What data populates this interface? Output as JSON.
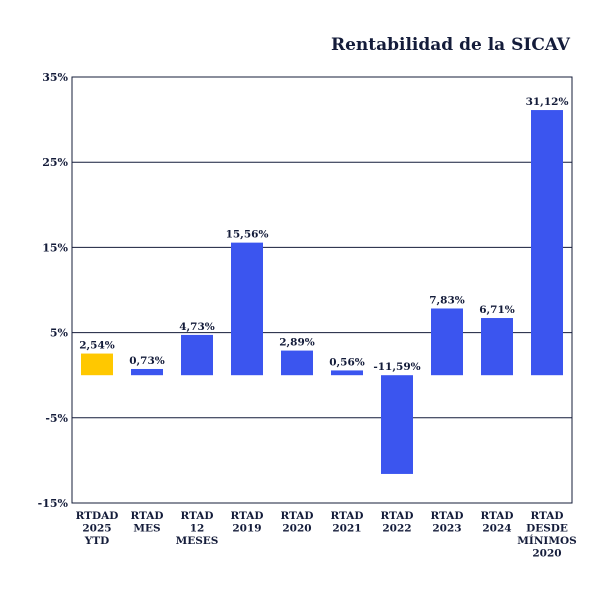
{
  "chart_data": {
    "type": "bar",
    "title": "Rentabilidad de la SICAV",
    "xlabel": "",
    "ylabel": "",
    "ylim": [
      -15,
      35
    ],
    "yticks": [
      -15,
      -5,
      5,
      15,
      25,
      35
    ],
    "ytick_labels": [
      "-15%",
      "-5%",
      "5%",
      "15%",
      "25%",
      "35%"
    ],
    "categories": [
      [
        "RTDAD",
        "2025",
        "YTD"
      ],
      [
        "RTAD",
        "MES"
      ],
      [
        "RTAD",
        "12",
        "MESES"
      ],
      [
        "RTAD",
        "2019"
      ],
      [
        "RTAD",
        "2020"
      ],
      [
        "RTAD",
        "2021"
      ],
      [
        "RTAD",
        "2022"
      ],
      [
        "RTAD",
        "2023"
      ],
      [
        "RTAD",
        "2024"
      ],
      [
        "RTAD",
        "DESDE",
        "MÍNIMOS",
        "2020"
      ]
    ],
    "values": [
      2.54,
      0.73,
      4.73,
      15.56,
      2.89,
      0.56,
      -11.59,
      7.83,
      6.71,
      31.12
    ],
    "value_labels": [
      "2,54%",
      "0,73%",
      "4,73%",
      "15,56%",
      "2,89%",
      "0,56%",
      "-11,59%",
      "7,83%",
      "6,71%",
      "31,12%"
    ],
    "colors": {
      "highlight": "#ffc800",
      "bar": "#3b55ef",
      "text": "#141c3a",
      "grid": "#141c3a"
    },
    "highlight_index": 0,
    "grid": true,
    "legend": "none"
  }
}
